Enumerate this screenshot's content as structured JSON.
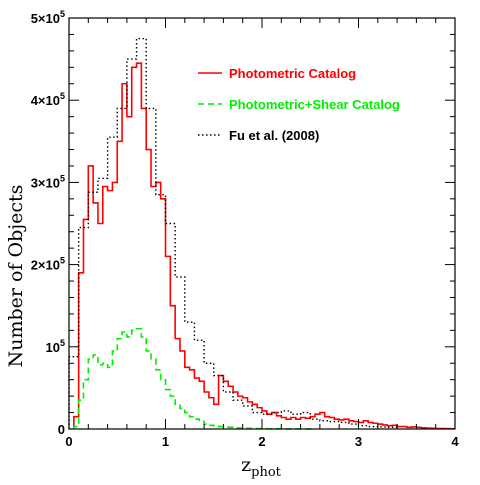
{
  "chart_data": {
    "type": "histogram",
    "xlabel_main": "z",
    "xlabel_sub": "phot",
    "ylabel": "Number of Objects",
    "xlim": [
      0,
      4
    ],
    "ylim": [
      0,
      500000
    ],
    "grid": false,
    "legend_position": "top-right",
    "x_ticks": [
      {
        "value": 0,
        "label": "0"
      },
      {
        "value": 1,
        "label": "1"
      },
      {
        "value": 2,
        "label": "2"
      },
      {
        "value": 3,
        "label": "3"
      },
      {
        "value": 4,
        "label": "4"
      }
    ],
    "y_ticks": [
      {
        "value": 0,
        "label": "0"
      },
      {
        "value": 100000,
        "label": "10⁵"
      },
      {
        "value": 200000,
        "label": "2×10⁵"
      },
      {
        "value": 300000,
        "label": "3×10⁵"
      },
      {
        "value": 400000,
        "label": "4×10⁵"
      },
      {
        "value": 500000,
        "label": "5×10⁵"
      }
    ],
    "series": [
      {
        "name": "Photometric Catalog",
        "color": "#ff0000",
        "style": "solid",
        "width": 1.6,
        "bin_width": 0.05,
        "x_start": 0.05,
        "values": [
          15000,
          190000,
          255000,
          320000,
          275000,
          250000,
          295000,
          290000,
          300000,
          350000,
          420000,
          380000,
          440000,
          445000,
          390000,
          340000,
          295000,
          300000,
          280000,
          210000,
          150000,
          110000,
          95000,
          75000,
          72000,
          62000,
          58000,
          45000,
          38000,
          30000,
          65000,
          58000,
          52000,
          45000,
          40000,
          38000,
          33000,
          30000,
          26000,
          22000,
          18000,
          20000,
          16000,
          14000,
          12000,
          14000,
          12000,
          14000,
          13000,
          15000,
          18000,
          20000,
          15000,
          14000,
          12000,
          11000,
          12000,
          10000,
          9000,
          8000,
          10000,
          8000,
          7000,
          6000,
          5000,
          4000,
          4500,
          3000,
          3000,
          2000,
          2500,
          2000,
          1500,
          1000,
          800,
          600,
          500,
          400,
          300
        ]
      },
      {
        "name": "Photometric+Shear Catalog",
        "color": "#00ee00",
        "style": "dashed",
        "width": 1.6,
        "bin_width": 0.05,
        "x_start": 0.05,
        "values": [
          3000,
          35000,
          60000,
          85000,
          90000,
          78000,
          80000,
          75000,
          95000,
          110000,
          118000,
          112000,
          120000,
          122000,
          112000,
          95000,
          85000,
          72000,
          60000,
          48000,
          40000,
          30000,
          25000,
          20000,
          15000,
          12000,
          9000,
          6000,
          4500,
          3500,
          3000,
          2500,
          2000,
          1500,
          1200,
          1000,
          800,
          600,
          500,
          400,
          300,
          250,
          200,
          150,
          100,
          80,
          60,
          40,
          30,
          20
        ]
      },
      {
        "name": "Fu et al. (2008)",
        "color": "#000000",
        "style": "dotted",
        "width": 1.4,
        "bin_width": 0.1,
        "x_start": 0.0,
        "values": [
          88000,
          245000,
          288000,
          305000,
          355000,
          390000,
          450000,
          475000,
          390000,
          285000,
          250000,
          185000,
          130000,
          108000,
          80000,
          65000,
          45000,
          35000,
          28000,
          20000,
          18000,
          20000,
          22000,
          18000,
          20000,
          12000,
          10000,
          9000,
          8000,
          6000,
          4000,
          3000,
          2500,
          2000
        ]
      }
    ]
  }
}
